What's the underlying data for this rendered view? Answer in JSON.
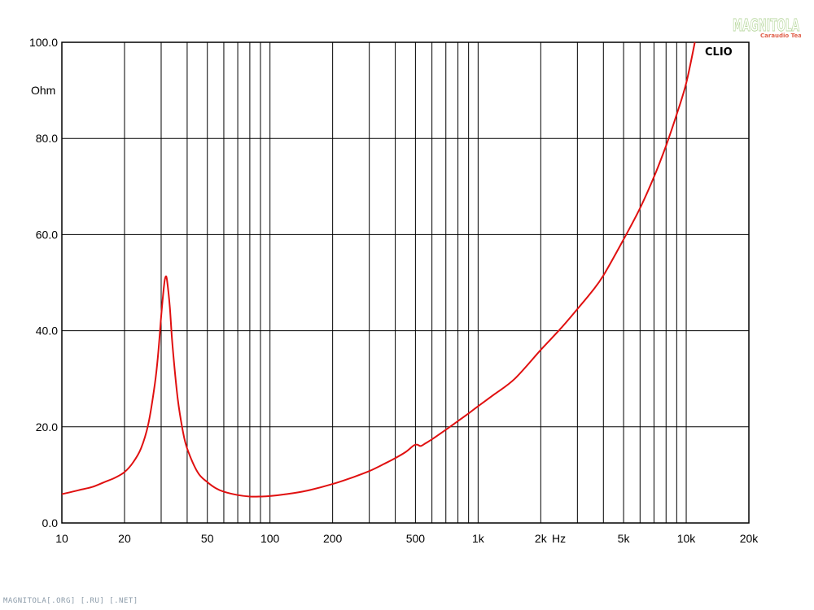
{
  "chart_data": {
    "type": "line",
    "xscale": "log",
    "xlim": [
      10,
      20000
    ],
    "ylim": [
      0,
      100
    ],
    "grid": true,
    "ylabel": "Ohm",
    "xlabel": "Hz",
    "x_ticks": [
      {
        "value": 10,
        "label": "10"
      },
      {
        "value": 20,
        "label": "20"
      },
      {
        "value": 50,
        "label": "50"
      },
      {
        "value": 100,
        "label": "100"
      },
      {
        "value": 200,
        "label": "200"
      },
      {
        "value": 500,
        "label": "500"
      },
      {
        "value": 1000,
        "label": "1k"
      },
      {
        "value": 2000,
        "label": "2k"
      },
      {
        "value": 5000,
        "label": "5k"
      },
      {
        "value": 10000,
        "label": "10k"
      },
      {
        "value": 20000,
        "label": "20k"
      }
    ],
    "y_ticks": [
      {
        "value": 0,
        "label": "0.0"
      },
      {
        "value": 20,
        "label": "20.0"
      },
      {
        "value": 40,
        "label": "40.0"
      },
      {
        "value": 60,
        "label": "60.0"
      },
      {
        "value": 80,
        "label": "80.0"
      },
      {
        "value": 100,
        "label": "100.0"
      }
    ],
    "series": [
      {
        "color": "#e01010",
        "points": [
          [
            10,
            6.0
          ],
          [
            12,
            6.8
          ],
          [
            14,
            7.5
          ],
          [
            16,
            8.5
          ],
          [
            18,
            9.4
          ],
          [
            20,
            10.6
          ],
          [
            22,
            12.6
          ],
          [
            24,
            15.5
          ],
          [
            26,
            20.5
          ],
          [
            28,
            29.0
          ],
          [
            29,
            35.0
          ],
          [
            30,
            43.0
          ],
          [
            31,
            49.5
          ],
          [
            31.5,
            51.2
          ],
          [
            32,
            50.5
          ],
          [
            33,
            45.0
          ],
          [
            34,
            37.0
          ],
          [
            36,
            26.0
          ],
          [
            38,
            19.5
          ],
          [
            40,
            15.5
          ],
          [
            45,
            10.5
          ],
          [
            50,
            8.5
          ],
          [
            55,
            7.2
          ],
          [
            60,
            6.5
          ],
          [
            70,
            5.8
          ],
          [
            80,
            5.5
          ],
          [
            90,
            5.5
          ],
          [
            100,
            5.6
          ],
          [
            120,
            6.0
          ],
          [
            150,
            6.7
          ],
          [
            200,
            8.1
          ],
          [
            250,
            9.5
          ],
          [
            300,
            10.8
          ],
          [
            350,
            12.2
          ],
          [
            400,
            13.5
          ],
          [
            450,
            14.8
          ],
          [
            490,
            16.1
          ],
          [
            510,
            16.3
          ],
          [
            530,
            16.0
          ],
          [
            560,
            16.6
          ],
          [
            600,
            17.4
          ],
          [
            700,
            19.4
          ],
          [
            800,
            21.2
          ],
          [
            900,
            22.8
          ],
          [
            1000,
            24.3
          ],
          [
            1200,
            26.8
          ],
          [
            1500,
            30.0
          ],
          [
            2000,
            36.0
          ],
          [
            2500,
            40.5
          ],
          [
            3000,
            44.5
          ],
          [
            3500,
            48.0
          ],
          [
            4000,
            51.5
          ],
          [
            5000,
            59.0
          ],
          [
            6000,
            65.5
          ],
          [
            7000,
            72.0
          ],
          [
            8000,
            78.5
          ],
          [
            9000,
            85.0
          ],
          [
            10000,
            91.5
          ],
          [
            11000,
            100.0
          ]
        ]
      }
    ]
  },
  "badge": "CLIO",
  "watermark": {
    "name": "MAGNITOLA",
    "sub": "Caraudio Team"
  },
  "footer": "MAGNITOLA[.ORG] [.RU] [.NET]"
}
